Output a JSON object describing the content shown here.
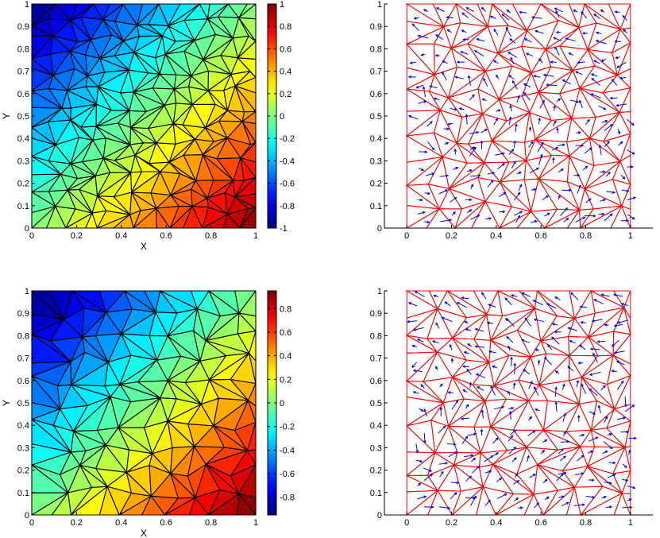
{
  "chart_data": [
    {
      "type": "heatmap",
      "panel": "top-left",
      "title": "",
      "xlabel": "X",
      "ylabel": "Y",
      "xlim": [
        0,
        1
      ],
      "ylim": [
        0,
        1
      ],
      "x_ticks": [
        "0",
        "0.2",
        "0.4",
        "0.6",
        "0.8",
        "1"
      ],
      "y_ticks": [
        "0",
        "0.1",
        "0.2",
        "0.3",
        "0.4",
        "0.5",
        "0.6",
        "0.7",
        "0.8",
        "0.9",
        "1"
      ],
      "field": "u(x,y) = x - y",
      "colormap": "jet",
      "mesh": "unstructured triangles (black edges)",
      "grid_n": 13,
      "clim": [
        -1,
        1
      ],
      "colorbar": {
        "ticks": [
          "1",
          "0.8",
          "0.6",
          "0.4",
          "0.2",
          "0",
          "-0.2",
          "-0.4",
          "-0.6",
          "-0.8",
          "-1"
        ],
        "values": [
          1,
          0.8,
          0.6,
          0.4,
          0.2,
          0,
          -0.2,
          -0.4,
          -0.6,
          -0.8,
          -1
        ]
      },
      "colors": {
        "edge": "#000000"
      }
    },
    {
      "type": "scatter",
      "panel": "top-right",
      "subtype": "quiver on triangular mesh",
      "title": "",
      "xlabel": "",
      "ylabel": "",
      "xlim": [
        -0.1,
        1.1
      ],
      "ylim": [
        0,
        1
      ],
      "x_ticks": [
        "0",
        "0.2",
        "0.4",
        "0.6",
        "0.8",
        "1"
      ],
      "y_ticks": [
        "0",
        "0.1",
        "0.2",
        "0.3",
        "0.4",
        "0.5",
        "0.6",
        "0.7",
        "0.8",
        "0.9",
        "1"
      ],
      "grid_n": 10,
      "colors": {
        "mesh": "#ff0000",
        "arrows": "#0000ff"
      }
    },
    {
      "type": "heatmap",
      "panel": "bottom-left",
      "title": "",
      "xlabel": "X",
      "ylabel": "Y",
      "xlim": [
        0,
        1
      ],
      "ylim": [
        0,
        1
      ],
      "x_ticks": [
        "0",
        "0.2",
        "0.4",
        "0.6",
        "0.8",
        "1"
      ],
      "y_ticks": [
        "0",
        "0.1",
        "0.2",
        "0.3",
        "0.4",
        "0.5",
        "0.6",
        "0.7",
        "0.8",
        "0.9",
        "1"
      ],
      "field": "u(x,y) = x - y",
      "colormap": "jet",
      "mesh": "unstructured triangles (black edges)",
      "grid_n": 10,
      "clim": [
        -0.95,
        0.95
      ],
      "colorbar": {
        "ticks": [
          "0.8",
          "0.6",
          "0.4",
          "0.2",
          "0",
          "-0.2",
          "-0.4",
          "-0.6",
          "-0.8"
        ],
        "values": [
          0.8,
          0.6,
          0.4,
          0.2,
          0,
          -0.2,
          -0.4,
          -0.6,
          -0.8
        ]
      },
      "colors": {
        "edge": "#000000"
      }
    },
    {
      "type": "scatter",
      "panel": "bottom-right",
      "subtype": "quiver on triangular mesh",
      "title": "",
      "xlabel": "",
      "ylabel": "",
      "xlim": [
        -0.1,
        1.1
      ],
      "ylim": [
        0,
        1
      ],
      "x_ticks": [
        "0",
        "0.2",
        "0.4",
        "0.6",
        "0.8",
        "1"
      ],
      "y_ticks": [
        "0",
        "0.1",
        "0.2",
        "0.3",
        "0.4",
        "0.5",
        "0.6",
        "0.7",
        "0.8",
        "0.9",
        "1"
      ],
      "grid_n": 10,
      "colors": {
        "mesh": "#ff0000",
        "arrows": "#0000ff"
      }
    }
  ]
}
